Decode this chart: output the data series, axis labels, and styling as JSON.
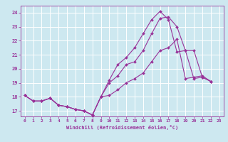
{
  "xlabel": "Windchill (Refroidissement éolien,°C)",
  "background_color": "#cde8f0",
  "line_color": "#993399",
  "grid_color": "#ffffff",
  "x_ticks": [
    0,
    1,
    2,
    3,
    4,
    5,
    6,
    7,
    8,
    9,
    10,
    11,
    12,
    13,
    14,
    15,
    16,
    17,
    18,
    19,
    20,
    21,
    22,
    23
  ],
  "y_ticks": [
    17,
    18,
    19,
    20,
    21,
    22,
    23,
    24
  ],
  "xlim": [
    -0.5,
    23.5
  ],
  "ylim": [
    16.6,
    24.5
  ],
  "series": [
    [
      18.1,
      17.7,
      17.7,
      17.9,
      17.4,
      17.3,
      17.1,
      17.0,
      16.7,
      18.0,
      18.1,
      18.5,
      19.0,
      19.3,
      19.7,
      20.5,
      21.3,
      21.5,
      22.1,
      19.3,
      19.4,
      19.5,
      19.1
    ],
    [
      18.1,
      17.7,
      17.7,
      17.9,
      17.4,
      17.3,
      17.1,
      17.0,
      16.7,
      18.0,
      19.0,
      19.5,
      20.3,
      20.5,
      21.3,
      22.5,
      23.6,
      23.7,
      23.0,
      21.3,
      19.3,
      19.4,
      19.1
    ],
    [
      18.1,
      17.7,
      17.7,
      17.9,
      17.4,
      17.3,
      17.1,
      17.0,
      16.7,
      18.0,
      19.2,
      20.3,
      20.8,
      21.5,
      22.5,
      23.5,
      24.1,
      23.5,
      21.2,
      21.3,
      21.3,
      19.4,
      19.1
    ]
  ],
  "x_series": [
    0,
    1,
    2,
    3,
    4,
    5,
    6,
    7,
    8,
    9,
    10,
    11,
    12,
    13,
    14,
    15,
    16,
    17,
    18,
    19,
    20,
    21,
    22
  ]
}
